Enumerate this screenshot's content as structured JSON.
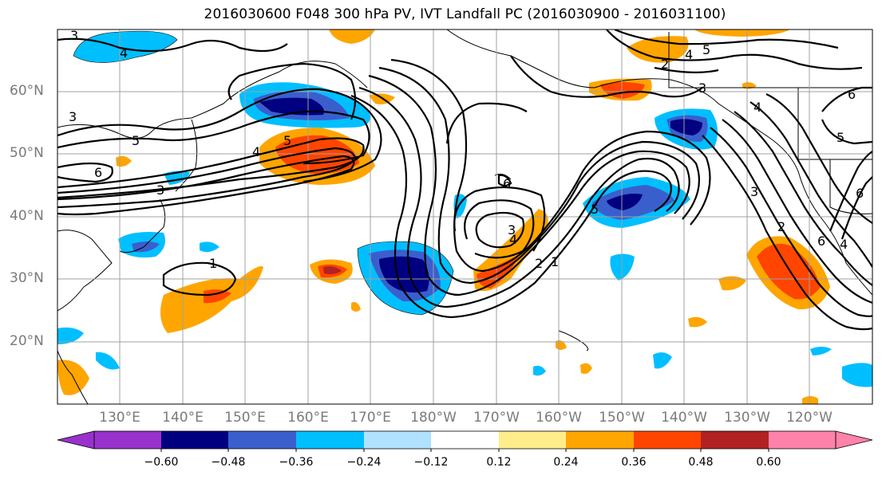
{
  "title": "2016030600 F048 300 hPa PV, IVT Landfall PC (2016030900 - 2016031100)",
  "lat_labels": [
    "60°N",
    "50°N",
    "40°N",
    "30°N",
    "20°N"
  ],
  "lon_labels": [
    "130°E",
    "140°E",
    "150°E",
    "160°E",
    "170°E",
    "180°W",
    "170°W",
    "160°W",
    "150°W",
    "140°W",
    "130°W",
    "120°W"
  ],
  "colorbar": {
    "ticks": [
      "−0.60",
      "−0.48",
      "−0.36",
      "−0.24",
      "−0.12",
      "0.12",
      "0.24",
      "0.36",
      "0.48",
      "0.60"
    ],
    "colors": [
      "#9932cc",
      "#000080",
      "#3a5fcd",
      "#00bfff",
      "#b0e2ff",
      "#ffffff",
      "#ffec8b",
      "#ffa500",
      "#ff4500",
      "#b22222",
      "#ff82ab"
    ]
  },
  "contour_labels": [
    "3",
    "4",
    "3",
    "5",
    "6",
    "3",
    "5",
    "4",
    "1",
    "6",
    "3",
    "4",
    "2",
    "1",
    "5",
    "2",
    "4",
    "5",
    "3",
    "6",
    "4",
    "3",
    "5",
    "6",
    "2",
    "6",
    "4"
  ]
}
